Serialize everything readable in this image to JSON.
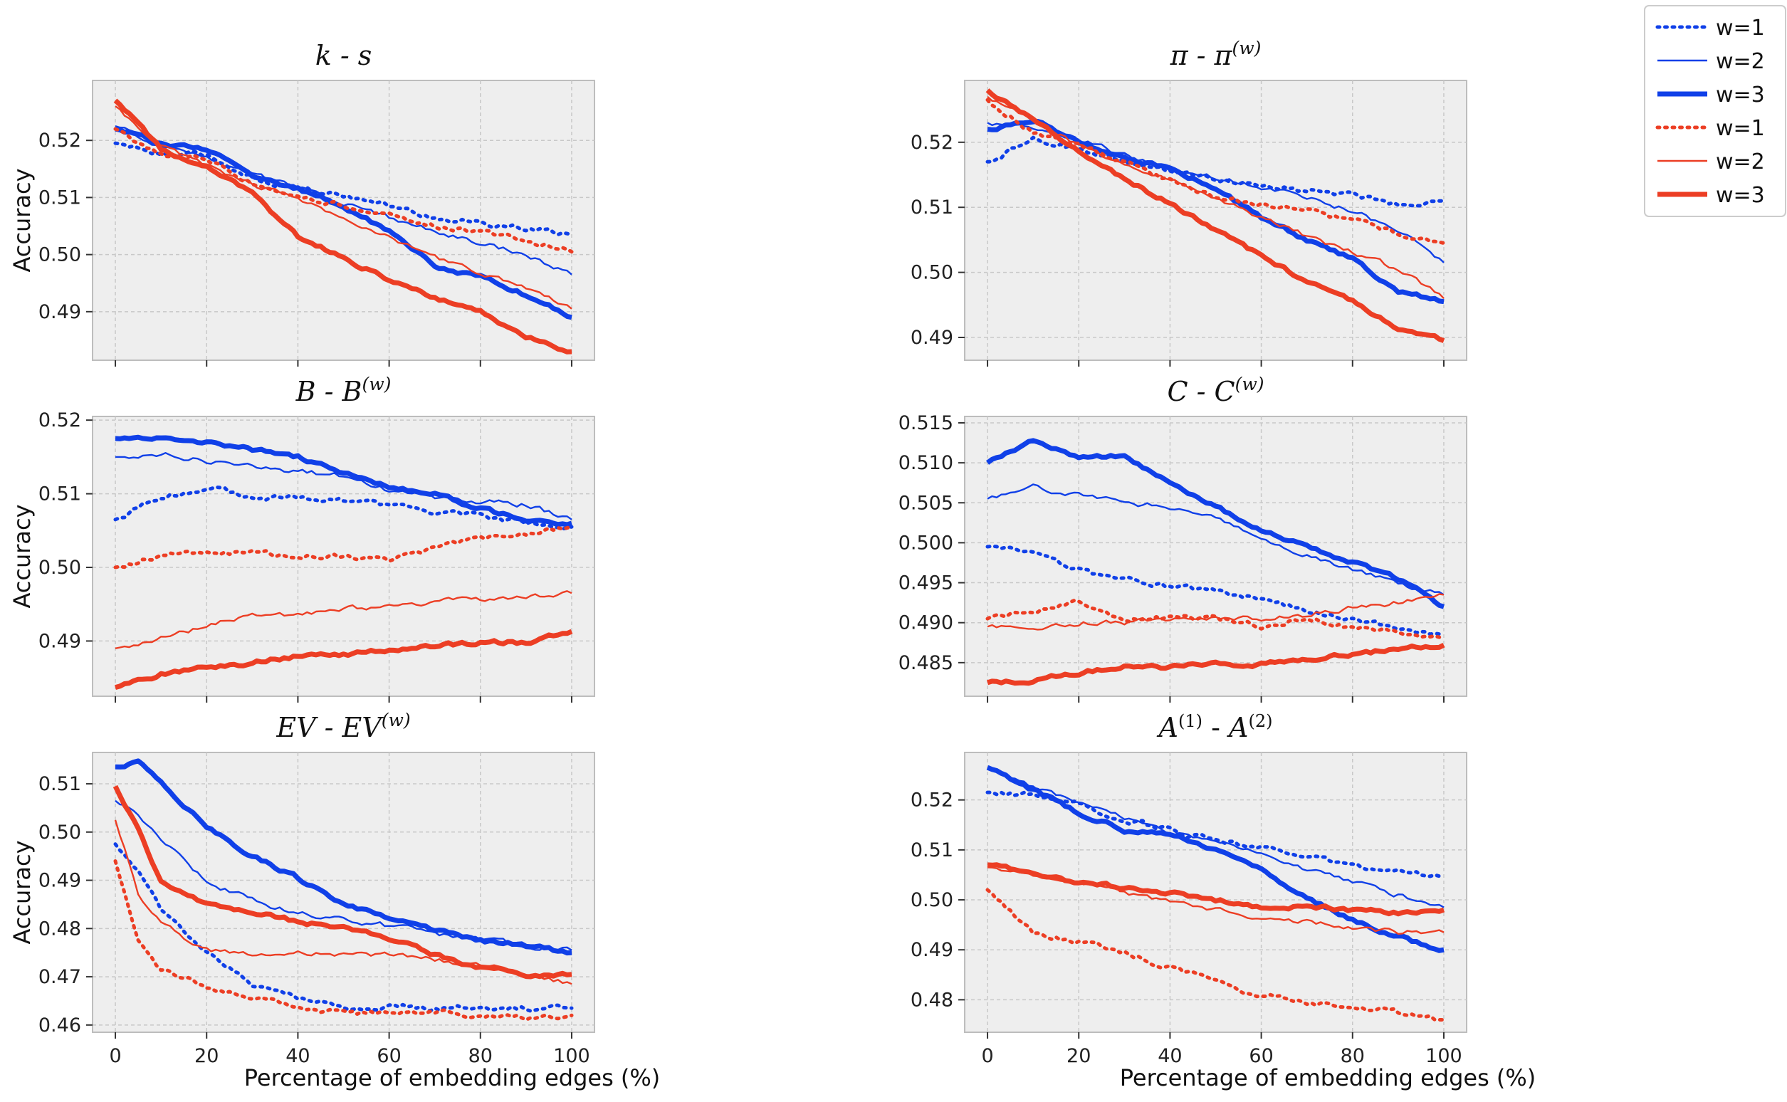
{
  "figure": {
    "xlabel": "Percentage of embedding edges (%)",
    "ylabel": "Accuracy"
  },
  "colors": {
    "blue": "#1040e8",
    "red": "#ec3e24",
    "panel_bg": "#eeeeee",
    "grid": "#c8c8c8",
    "frame": "#bdbdbd"
  },
  "legend": {
    "entries": [
      {
        "label": "w=1",
        "color": "#1040e8",
        "style": "dotted"
      },
      {
        "label": "w=2",
        "color": "#1040e8",
        "style": "thin"
      },
      {
        "label": "w=3",
        "color": "#1040e8",
        "style": "thick"
      },
      {
        "label": "w=1",
        "color": "#ec3e24",
        "style": "dotted"
      },
      {
        "label": "w=2",
        "color": "#ec3e24",
        "style": "thin"
      },
      {
        "label": "w=3",
        "color": "#ec3e24",
        "style": "thick"
      }
    ]
  },
  "chart_data": [
    {
      "type": "line",
      "id": "k-s",
      "title": "k - s",
      "title_main": "k - s",
      "title_sup": "",
      "xlabel": "",
      "ylabel": "Accuracy",
      "xlim": [
        -5,
        105
      ],
      "ylim": [
        0.4815,
        0.5305
      ],
      "xticks": [
        0,
        20,
        40,
        60,
        80,
        100
      ],
      "xtick_labels": [],
      "yticks": [
        0.49,
        0.5,
        0.51,
        0.52
      ],
      "ytick_labels": [
        "0.49",
        "0.50",
        "0.51",
        "0.52"
      ],
      "x": [
        0,
        10,
        20,
        30,
        40,
        50,
        60,
        70,
        80,
        90,
        100
      ],
      "series": [
        {
          "color": "blue",
          "style": "dotted",
          "values": [
            0.5195,
            0.5175,
            0.5175,
            0.5135,
            0.5115,
            0.5105,
            0.5085,
            0.5065,
            0.5055,
            0.5045,
            0.5035
          ]
        },
        {
          "color": "blue",
          "style": "thin",
          "values": [
            0.5225,
            0.519,
            0.5175,
            0.514,
            0.5115,
            0.509,
            0.5065,
            0.504,
            0.502,
            0.5,
            0.4965
          ]
        },
        {
          "color": "blue",
          "style": "thick",
          "values": [
            0.522,
            0.5195,
            0.5185,
            0.5135,
            0.5115,
            0.5085,
            0.504,
            0.498,
            0.496,
            0.493,
            0.489
          ]
        },
        {
          "color": "red",
          "style": "dotted",
          "values": [
            0.522,
            0.5175,
            0.517,
            0.5125,
            0.5105,
            0.5085,
            0.507,
            0.505,
            0.504,
            0.5025,
            0.5005
          ]
        },
        {
          "color": "red",
          "style": "thin",
          "values": [
            0.526,
            0.519,
            0.5155,
            0.5125,
            0.5095,
            0.5065,
            0.503,
            0.4995,
            0.497,
            0.494,
            0.4905
          ]
        },
        {
          "color": "red",
          "style": "thick",
          "values": [
            0.527,
            0.5185,
            0.5155,
            0.5105,
            0.503,
            0.4995,
            0.4955,
            0.4925,
            0.49,
            0.4855,
            0.483
          ]
        }
      ]
    },
    {
      "type": "line",
      "id": "pi",
      "title": "π - π(w)",
      "title_main": "π - π",
      "title_sup": "(w)",
      "xlabel": "",
      "ylabel": "",
      "xlim": [
        -5,
        105
      ],
      "ylim": [
        0.4865,
        0.5295
      ],
      "xticks": [
        0,
        20,
        40,
        60,
        80,
        100
      ],
      "xtick_labels": [],
      "yticks": [
        0.49,
        0.5,
        0.51,
        0.52
      ],
      "ytick_labels": [
        "0.49",
        "0.50",
        "0.51",
        "0.52"
      ],
      "x": [
        0,
        10,
        20,
        30,
        40,
        50,
        60,
        70,
        80,
        90,
        100
      ],
      "series": [
        {
          "color": "blue",
          "style": "dotted",
          "values": [
            0.517,
            0.5205,
            0.519,
            0.517,
            0.5155,
            0.5145,
            0.5135,
            0.5125,
            0.512,
            0.5105,
            0.511
          ]
        },
        {
          "color": "blue",
          "style": "thin",
          "values": [
            0.523,
            0.5225,
            0.5205,
            0.518,
            0.516,
            0.5145,
            0.513,
            0.5115,
            0.5095,
            0.5065,
            0.5015
          ]
        },
        {
          "color": "blue",
          "style": "thick",
          "values": [
            0.522,
            0.5235,
            0.52,
            0.5175,
            0.516,
            0.513,
            0.5085,
            0.505,
            0.502,
            0.497,
            0.4955
          ]
        },
        {
          "color": "red",
          "style": "dotted",
          "values": [
            0.5265,
            0.5215,
            0.5195,
            0.517,
            0.514,
            0.5115,
            0.5105,
            0.5095,
            0.508,
            0.506,
            0.5045
          ]
        },
        {
          "color": "red",
          "style": "thin",
          "values": [
            0.527,
            0.5235,
            0.5195,
            0.5165,
            0.5145,
            0.5115,
            0.5085,
            0.5055,
            0.503,
            0.5005,
            0.496
          ]
        },
        {
          "color": "red",
          "style": "thick",
          "values": [
            0.528,
            0.5235,
            0.5185,
            0.5145,
            0.5105,
            0.5065,
            0.5025,
            0.4985,
            0.4955,
            0.4915,
            0.4895
          ]
        }
      ]
    },
    {
      "type": "line",
      "id": "B",
      "title": "B - B(w)",
      "title_main": "B - B",
      "title_sup": "(w)",
      "xlabel": "",
      "ylabel": "Accuracy",
      "xlim": [
        -5,
        105
      ],
      "ylim": [
        0.4825,
        0.5205
      ],
      "xticks": [
        0,
        20,
        40,
        60,
        80,
        100
      ],
      "xtick_labels": [],
      "yticks": [
        0.49,
        0.5,
        0.51,
        0.52
      ],
      "ytick_labels": [
        "0.49",
        "0.50",
        "0.51",
        "0.52"
      ],
      "x": [
        0,
        10,
        20,
        30,
        40,
        50,
        60,
        70,
        80,
        90,
        100
      ],
      "series": [
        {
          "color": "blue",
          "style": "dotted",
          "values": [
            0.5065,
            0.5095,
            0.511,
            0.5095,
            0.5095,
            0.509,
            0.5085,
            0.5075,
            0.507,
            0.506,
            0.5055
          ]
        },
        {
          "color": "blue",
          "style": "thin",
          "values": [
            0.515,
            0.5155,
            0.5145,
            0.514,
            0.513,
            0.5125,
            0.5105,
            0.5095,
            0.509,
            0.5085,
            0.5065
          ]
        },
        {
          "color": "blue",
          "style": "thick",
          "values": [
            0.5175,
            0.5175,
            0.517,
            0.516,
            0.515,
            0.513,
            0.511,
            0.51,
            0.508,
            0.5065,
            0.506
          ]
        },
        {
          "color": "red",
          "style": "dotted",
          "values": [
            0.5,
            0.5015,
            0.502,
            0.502,
            0.5015,
            0.5015,
            0.501,
            0.5025,
            0.504,
            0.5045,
            0.5055
          ]
        },
        {
          "color": "red",
          "style": "thin",
          "values": [
            0.489,
            0.4905,
            0.492,
            0.4935,
            0.4935,
            0.4945,
            0.4945,
            0.4955,
            0.4955,
            0.496,
            0.4965
          ]
        },
        {
          "color": "red",
          "style": "thick",
          "values": [
            0.4837,
            0.4855,
            0.4865,
            0.487,
            0.488,
            0.4882,
            0.4887,
            0.4893,
            0.4898,
            0.4898,
            0.4913
          ]
        }
      ]
    },
    {
      "type": "line",
      "id": "C",
      "title": "C - C(w)",
      "title_main": "C - C",
      "title_sup": "(w)",
      "xlabel": "",
      "ylabel": "",
      "xlim": [
        -5,
        105
      ],
      "ylim": [
        0.4808,
        0.5158
      ],
      "xticks": [
        0,
        20,
        40,
        60,
        80,
        100
      ],
      "xtick_labels": [],
      "yticks": [
        0.485,
        0.49,
        0.495,
        0.5,
        0.505,
        0.51,
        0.515
      ],
      "ytick_labels": [
        "0.485",
        "0.490",
        "0.495",
        "0.500",
        "0.505",
        "0.510",
        "0.515"
      ],
      "x": [
        0,
        10,
        20,
        30,
        40,
        50,
        60,
        70,
        80,
        90,
        100
      ],
      "series": [
        {
          "color": "blue",
          "style": "dotted",
          "values": [
            0.4995,
            0.4985,
            0.4965,
            0.4955,
            0.4945,
            0.494,
            0.493,
            0.4915,
            0.4905,
            0.4895,
            0.4885
          ]
        },
        {
          "color": "blue",
          "style": "thin",
          "values": [
            0.5055,
            0.507,
            0.506,
            0.505,
            0.5045,
            0.503,
            0.5005,
            0.4985,
            0.4965,
            0.495,
            0.4935
          ]
        },
        {
          "color": "blue",
          "style": "thick",
          "values": [
            0.51,
            0.513,
            0.5105,
            0.511,
            0.5075,
            0.5045,
            0.5015,
            0.4995,
            0.4975,
            0.4955,
            0.492
          ]
        },
        {
          "color": "red",
          "style": "dotted",
          "values": [
            0.4905,
            0.4915,
            0.4925,
            0.4905,
            0.4905,
            0.4905,
            0.4895,
            0.4905,
            0.4895,
            0.489,
            0.488
          ]
        },
        {
          "color": "red",
          "style": "thin",
          "values": [
            0.4895,
            0.4895,
            0.49,
            0.49,
            0.4905,
            0.4905,
            0.4905,
            0.491,
            0.492,
            0.4925,
            0.4935
          ]
        },
        {
          "color": "red",
          "style": "thick",
          "values": [
            0.4825,
            0.4828,
            0.4838,
            0.4845,
            0.4845,
            0.4848,
            0.4848,
            0.4855,
            0.486,
            0.4868,
            0.4872
          ]
        }
      ]
    },
    {
      "type": "line",
      "id": "EV",
      "title": "EV - EV(w)",
      "title_main": "EV - EV",
      "title_sup": "(w)",
      "xlabel": "Percentage of embedding edges (%)",
      "ylabel": "Accuracy",
      "xlim": [
        -5,
        105
      ],
      "ylim": [
        0.4585,
        0.5165
      ],
      "xticks": [
        0,
        20,
        40,
        60,
        80,
        100
      ],
      "xtick_labels": [
        "0",
        "20",
        "40",
        "60",
        "80",
        "100"
      ],
      "yticks": [
        0.46,
        0.47,
        0.48,
        0.49,
        0.5,
        0.51
      ],
      "ytick_labels": [
        "0.46",
        "0.47",
        "0.48",
        "0.49",
        "0.50",
        "0.51"
      ],
      "x": [
        0,
        5,
        10,
        20,
        30,
        40,
        50,
        60,
        70,
        80,
        90,
        100
      ],
      "series": [
        {
          "color": "blue",
          "style": "dotted",
          "values": [
            0.4975,
            0.4925,
            0.484,
            0.475,
            0.4685,
            0.4655,
            0.4635,
            0.464,
            0.4635,
            0.4635,
            0.4635,
            0.4635
          ]
        },
        {
          "color": "blue",
          "style": "thin",
          "values": [
            0.5065,
            0.504,
            0.4985,
            0.4895,
            0.486,
            0.483,
            0.482,
            0.4805,
            0.479,
            0.4775,
            0.4765,
            0.4755
          ]
        },
        {
          "color": "blue",
          "style": "thick",
          "values": [
            0.5135,
            0.5145,
            0.5105,
            0.501,
            0.495,
            0.4905,
            0.485,
            0.482,
            0.4795,
            0.4775,
            0.4765,
            0.475
          ]
        },
        {
          "color": "red",
          "style": "dotted",
          "values": [
            0.494,
            0.478,
            0.4715,
            0.468,
            0.4655,
            0.464,
            0.4625,
            0.4625,
            0.4625,
            0.462,
            0.4615,
            0.462
          ]
        },
        {
          "color": "red",
          "style": "thin",
          "values": [
            0.5025,
            0.4875,
            0.481,
            0.4755,
            0.4745,
            0.475,
            0.4745,
            0.4745,
            0.4735,
            0.4725,
            0.4705,
            0.4685
          ]
        },
        {
          "color": "red",
          "style": "thick",
          "values": [
            0.5095,
            0.5005,
            0.4895,
            0.485,
            0.4835,
            0.4815,
            0.48,
            0.478,
            0.4745,
            0.472,
            0.4705,
            0.4705
          ]
        }
      ]
    },
    {
      "type": "line",
      "id": "A",
      "title": "A(1) - A(2)",
      "title_main": "A(1) - A(2)",
      "title_sup": "",
      "xlabel": "Percentage of embedding edges (%)",
      "ylabel": "",
      "xlim": [
        -5,
        105
      ],
      "ylim": [
        0.4735,
        0.5295
      ],
      "xticks": [
        0,
        20,
        40,
        60,
        80,
        100
      ],
      "xtick_labels": [
        "0",
        "20",
        "40",
        "60",
        "80",
        "100"
      ],
      "yticks": [
        0.48,
        0.49,
        0.5,
        0.51,
        0.52
      ],
      "ytick_labels": [
        "0.48",
        "0.49",
        "0.50",
        "0.51",
        "0.52"
      ],
      "x": [
        0,
        10,
        20,
        30,
        40,
        50,
        60,
        70,
        80,
        90,
        100
      ],
      "series": [
        {
          "color": "blue",
          "style": "dotted",
          "values": [
            0.5215,
            0.521,
            0.519,
            0.516,
            0.514,
            0.512,
            0.5105,
            0.5085,
            0.507,
            0.5055,
            0.5045
          ]
        },
        {
          "color": "blue",
          "style": "thin",
          "values": [
            0.5265,
            0.5225,
            0.52,
            0.5165,
            0.5135,
            0.5115,
            0.509,
            0.506,
            0.5035,
            0.501,
            0.4985
          ]
        },
        {
          "color": "blue",
          "style": "thick",
          "values": [
            0.5265,
            0.522,
            0.5175,
            0.514,
            0.513,
            0.51,
            0.506,
            0.5005,
            0.496,
            0.4925,
            0.49
          ]
        },
        {
          "color": "red",
          "style": "dotted",
          "values": [
            0.502,
            0.4935,
            0.4915,
            0.4895,
            0.4865,
            0.4835,
            0.481,
            0.4795,
            0.4785,
            0.4775,
            0.476
          ]
        },
        {
          "color": "red",
          "style": "thin",
          "values": [
            0.5065,
            0.505,
            0.5035,
            0.5015,
            0.4995,
            0.498,
            0.4965,
            0.4955,
            0.4945,
            0.4935,
            0.4935
          ]
        },
        {
          "color": "red",
          "style": "thick",
          "values": [
            0.507,
            0.5055,
            0.5035,
            0.5025,
            0.5015,
            0.5,
            0.4985,
            0.4985,
            0.498,
            0.4975,
            0.498
          ]
        }
      ]
    }
  ]
}
